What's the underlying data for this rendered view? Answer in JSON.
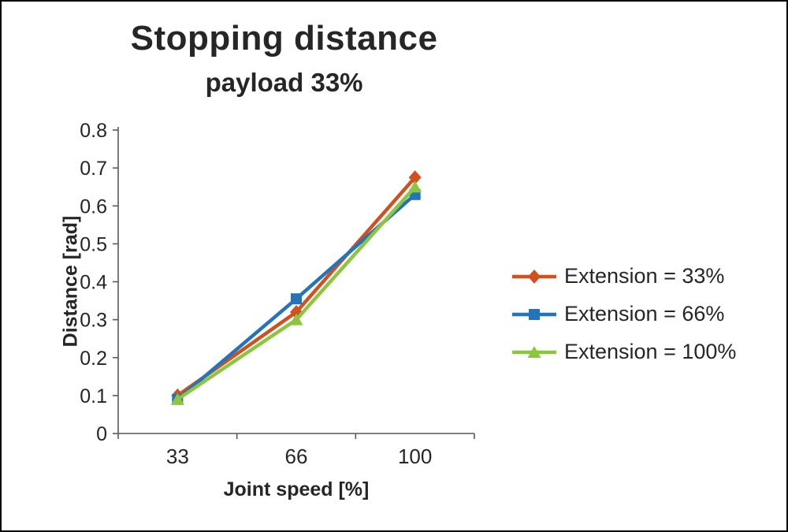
{
  "title": "Stopping distance",
  "subtitle": "payload 33%",
  "chart_data": {
    "type": "line",
    "title": "Stopping distance",
    "subtitle": "payload 33%",
    "xlabel": "Joint speed [%]",
    "ylabel": "Distance [rad]",
    "categories": [
      "33",
      "66",
      "100"
    ],
    "series": [
      {
        "name": "Extension = 33%",
        "marker": "diamond",
        "color": "#d2501e",
        "values": [
          0.1,
          0.32,
          0.675
        ]
      },
      {
        "name": "Extension = 66%",
        "marker": "square",
        "color": "#2374b9",
        "values": [
          0.09,
          0.355,
          0.63
        ]
      },
      {
        "name": "Extension = 100%",
        "marker": "triangle",
        "color": "#8cc63f",
        "values": [
          0.09,
          0.3,
          0.65
        ]
      }
    ],
    "ylim": [
      0,
      0.8
    ],
    "yticks": [
      0,
      0.1,
      0.2,
      0.3,
      0.4,
      0.5,
      0.6,
      0.7,
      0.8
    ],
    "ytick_labels": [
      "0",
      "0.1",
      "0.2",
      "0.3",
      "0.4",
      "0.5",
      "0.6",
      "0.7",
      "0.8"
    ],
    "legend_position": "right",
    "grid": false,
    "axis_color": "#595959",
    "tick_label_color": "#262626"
  }
}
